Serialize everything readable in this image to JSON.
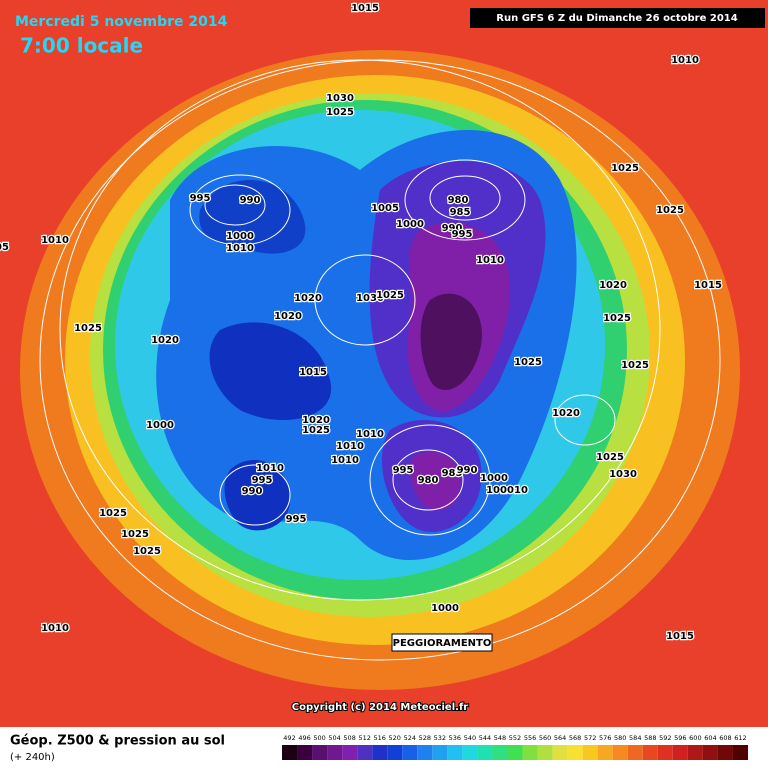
{
  "header": {
    "date": "Mercredi 5 novembre 2014",
    "time": "7:00 locale",
    "run": "Run GFS 6 Z du Dimanche 26 octobre 2014"
  },
  "isobar_labels": [
    "1015",
    "1010",
    "1030",
    "1025",
    "995",
    "990",
    "1000",
    "1010",
    "1005",
    "1000",
    "980",
    "985",
    "990",
    "995",
    "1010",
    "1030",
    "1025",
    "1020",
    "1020",
    "1020",
    "1025",
    "1010",
    "1005",
    "1025",
    "1025",
    "1015",
    "1020",
    "1025",
    "1025",
    "1025",
    "1020",
    "1025",
    "1030",
    "1015",
    "1000",
    "1020",
    "1025",
    "1010",
    "1010",
    "1010",
    "1010",
    "995",
    "990",
    "995",
    "995",
    "980",
    "985",
    "990",
    "1000",
    "1010",
    "1000",
    "1025",
    "1025",
    "1025",
    "1010",
    "1000",
    "1015"
  ],
  "annotation": "PEGGIORAMENTO",
  "copyright": "Copyright (c) 2014 Meteociel.fr",
  "footer": {
    "title": "Géop. Z500 & pression au sol",
    "subtitle": "(+ 240h)"
  },
  "scale": {
    "labels": [
      "492",
      "496",
      "500",
      "504",
      "508",
      "512",
      "516",
      "520",
      "524",
      "528",
      "532",
      "536",
      "540",
      "544",
      "548",
      "552",
      "556",
      "560",
      "564",
      "568",
      "572",
      "576",
      "580",
      "584",
      "588",
      "592",
      "596",
      "600",
      "604",
      "608",
      "612"
    ],
    "colors": [
      "#1a0010",
      "#3a0040",
      "#5a1070",
      "#701890",
      "#8020b0",
      "#5030c0",
      "#2030c8",
      "#1040d8",
      "#1860e8",
      "#2080f0",
      "#20a0f0",
      "#20c0f0",
      "#20d8e0",
      "#20e0b0",
      "#30e080",
      "#40e050",
      "#80e040",
      "#b0e040",
      "#e0e040",
      "#f8e030",
      "#f8c820",
      "#f8a820",
      "#f88820",
      "#f06820",
      "#e84820",
      "#e03020",
      "#d02020",
      "#b01818",
      "#901010",
      "#700808",
      "#500000"
    ]
  }
}
